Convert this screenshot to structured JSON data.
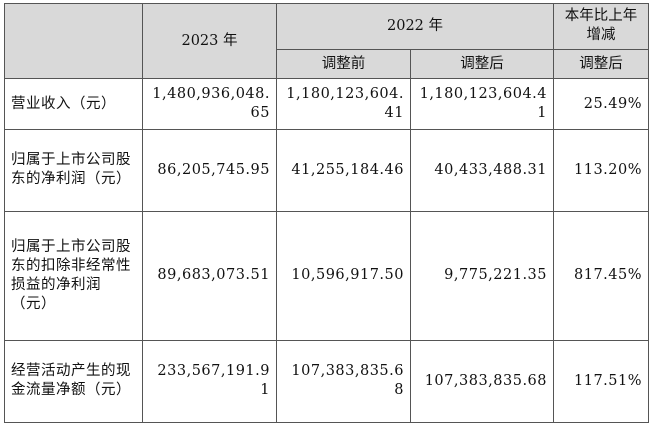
{
  "header": {
    "year_2023": "2023 年",
    "year_2022": "2022 年",
    "yoy_change": "本年比上年增减",
    "before_adjust": "调整前",
    "after_adjust": "调整后",
    "yoy_after_adjust": "调整后"
  },
  "rows": [
    {
      "label": "营业收入（元）",
      "v2023": "1,480,936,048.65",
      "v2022_before": "1,180,123,604.41",
      "v2022_after": "1,180,123,604.41",
      "change": "25.49%"
    },
    {
      "label": "归属于上市公司股东的净利润（元）",
      "v2023": "86,205,745.95",
      "v2022_before": "41,255,184.46",
      "v2022_after": "40,433,488.31",
      "change": "113.20%"
    },
    {
      "label": "归属于上市公司股东的扣除非经常性损益的净利润（元）",
      "v2023": "89,683,073.51",
      "v2022_before": "10,596,917.50",
      "v2022_after": "9,775,221.35",
      "change": "817.45%"
    },
    {
      "label": "经营活动产生的现金流量净额（元）",
      "v2023": "233,567,191.91",
      "v2022_before": "107,383,835.68",
      "v2022_after": "107,383,835.68",
      "change": "117.51%"
    }
  ]
}
